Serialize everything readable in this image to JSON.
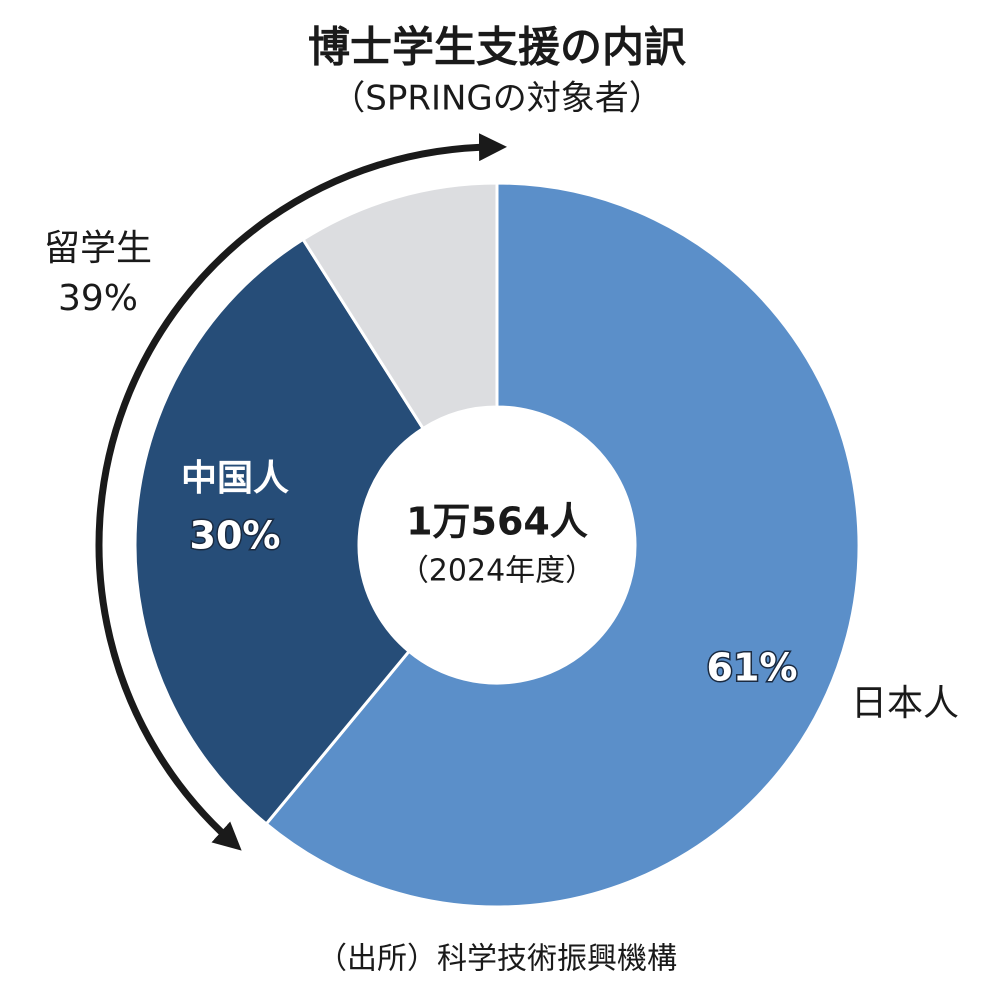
{
  "chart_data": {
    "type": "donut",
    "title": "博士学生支援の内訳",
    "subtitle": "（SPRINGの対象者）",
    "categories": [
      "日本人",
      "中国人",
      null
    ],
    "values": [
      61,
      30,
      9
    ],
    "value_labels": [
      "61%",
      "30%",
      null
    ],
    "colors": [
      "#5b8fc9",
      "#264d78",
      "#dcdde0"
    ],
    "group": {
      "name": "留学生",
      "value": 39,
      "value_label": "39%"
    },
    "center_text": [
      "1万564人",
      "（2024年度）"
    ],
    "source": "（出所）科学技術振興機構"
  }
}
